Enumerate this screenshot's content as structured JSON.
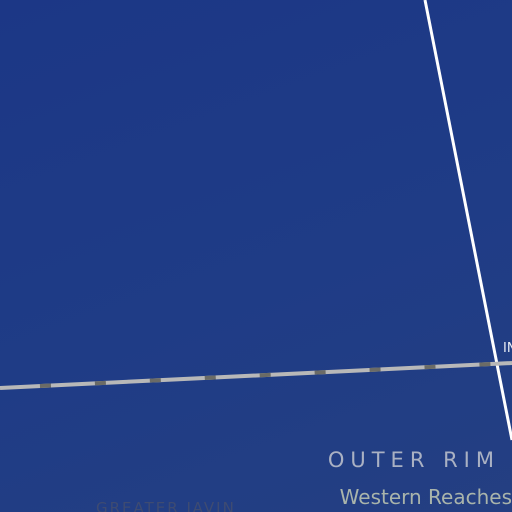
{
  "map": {
    "background_color": "#1e3a84",
    "region": {
      "name": "OUTER RIM",
      "subregion": "Western Reaches"
    },
    "labels": {
      "edge_label": "IN",
      "clipped_label": "GREATER JAVIN"
    },
    "lines": [
      {
        "kind": "boundary",
        "color": "#ffffff",
        "style": "solid"
      },
      {
        "kind": "hyperspace-lane",
        "color": "#b8b8b8",
        "dash_color": "#6b6b66",
        "style": "dashed"
      }
    ]
  }
}
